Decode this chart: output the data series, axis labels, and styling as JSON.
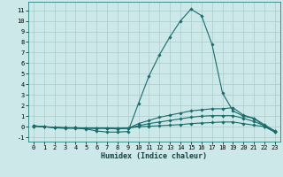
{
  "xlabel": "Humidex (Indice chaleur)",
  "background_color": "#cce8e8",
  "grid_color": "#aacccc",
  "line_color": "#1a6b6b",
  "xlim": [
    -0.5,
    23.5
  ],
  "ylim": [
    -1.4,
    11.8
  ],
  "xticks": [
    0,
    1,
    2,
    3,
    4,
    5,
    6,
    7,
    8,
    9,
    10,
    11,
    12,
    13,
    14,
    15,
    16,
    17,
    18,
    19,
    20,
    21,
    22,
    23
  ],
  "yticks": [
    -1,
    0,
    1,
    2,
    3,
    4,
    5,
    6,
    7,
    8,
    9,
    10,
    11
  ],
  "lines": [
    [
      0.1,
      0.0,
      -0.1,
      -0.15,
      -0.15,
      -0.2,
      -0.4,
      -0.5,
      -0.5,
      -0.45,
      2.2,
      4.8,
      6.8,
      8.5,
      10.0,
      11.1,
      10.5,
      7.8,
      3.2,
      1.5,
      1.0,
      0.8,
      0.05,
      -0.5
    ],
    [
      0.1,
      0.0,
      -0.05,
      -0.1,
      -0.1,
      -0.15,
      -0.15,
      -0.15,
      -0.2,
      -0.15,
      0.3,
      0.6,
      0.9,
      1.1,
      1.3,
      1.5,
      1.6,
      1.7,
      1.7,
      1.8,
      1.1,
      0.8,
      0.2,
      -0.4
    ],
    [
      0.05,
      0.0,
      -0.05,
      -0.1,
      -0.1,
      -0.12,
      -0.12,
      -0.12,
      -0.15,
      -0.12,
      0.1,
      0.3,
      0.45,
      0.6,
      0.75,
      0.9,
      1.0,
      1.05,
      1.05,
      1.05,
      0.8,
      0.5,
      0.1,
      -0.4
    ],
    [
      0.05,
      0.0,
      -0.05,
      -0.1,
      -0.1,
      -0.12,
      -0.12,
      -0.12,
      -0.15,
      -0.12,
      0.0,
      0.05,
      0.1,
      0.15,
      0.2,
      0.3,
      0.35,
      0.4,
      0.45,
      0.45,
      0.3,
      0.15,
      0.02,
      -0.5
    ]
  ]
}
